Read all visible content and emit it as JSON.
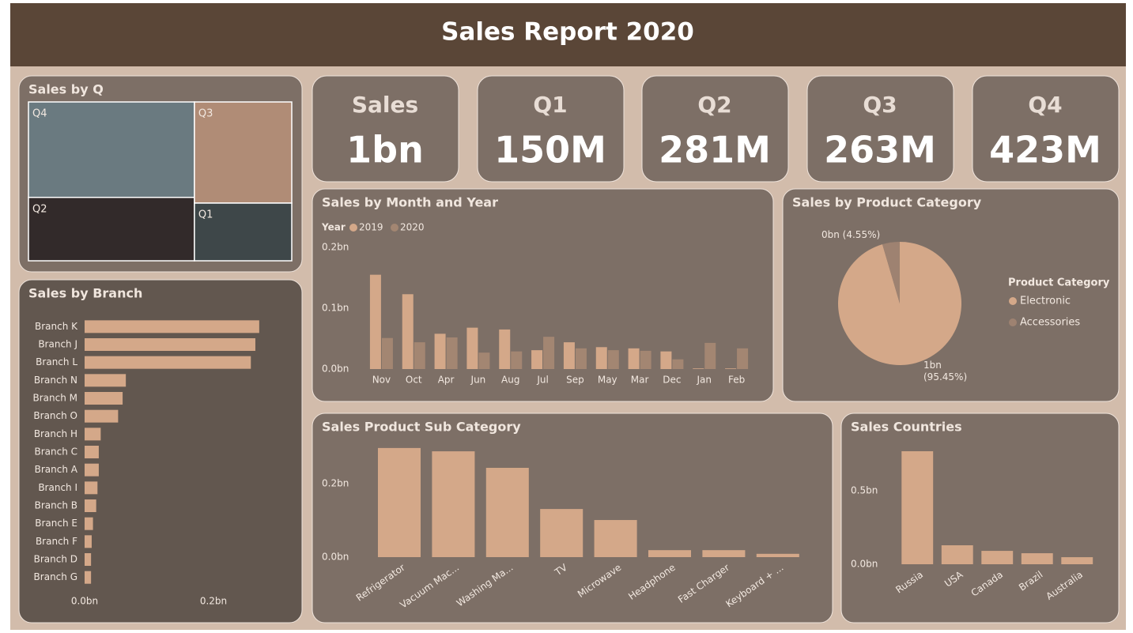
{
  "header": {
    "title": "Sales Report 2020"
  },
  "cards": [
    {
      "label": "Sales",
      "value": "1bn"
    },
    {
      "label": "Q1",
      "value": "150M"
    },
    {
      "label": "Q2",
      "value": "281M"
    },
    {
      "label": "Q3",
      "value": "263M"
    },
    {
      "label": "Q4",
      "value": "423M"
    }
  ],
  "chart_data": [
    {
      "type": "treemap",
      "title": "Sales by Q",
      "categories": [
        "Q1",
        "Q2",
        "Q3",
        "Q4"
      ],
      "values": [
        150,
        281,
        263,
        423
      ],
      "colors": [
        "#3e4749",
        "#322a2a",
        "#b08c76",
        "#6a7a80"
      ]
    },
    {
      "type": "barh",
      "title": "Sales by Branch",
      "categories": [
        "Branch K",
        "Branch J",
        "Branch L",
        "Branch N",
        "Branch M",
        "Branch O",
        "Branch H",
        "Branch C",
        "Branch A",
        "Branch I",
        "Branch B",
        "Branch E",
        "Branch F",
        "Branch D",
        "Branch G"
      ],
      "values": [
        0.271,
        0.265,
        0.258,
        0.064,
        0.059,
        0.052,
        0.025,
        0.022,
        0.022,
        0.02,
        0.018,
        0.013,
        0.011,
        0.01,
        0.01
      ],
      "color": "#d4a889",
      "xlim": [
        0,
        0.3
      ],
      "xticks": [
        {
          "value": 0,
          "label": "0.0bn"
        },
        {
          "value": 0.2,
          "label": "0.2bn"
        }
      ]
    },
    {
      "type": "bar",
      "title": "Sales by Month and Year",
      "legend_title": "Year",
      "categories": [
        "Nov",
        "Oct",
        "Apr",
        "Jun",
        "Aug",
        "Jul",
        "Sep",
        "May",
        "Mar",
        "Dec",
        "Jan",
        "Feb"
      ],
      "series": [
        {
          "name": "2019",
          "color": "#d4a889",
          "values": [
            0.155,
            0.123,
            0.058,
            0.068,
            0.065,
            0.031,
            0.044,
            0.036,
            0.034,
            0.029,
            0.001,
            0.001
          ]
        },
        {
          "name": "2020",
          "color": "#a38672",
          "values": [
            0.051,
            0.044,
            0.052,
            0.027,
            0.029,
            0.053,
            0.034,
            0.031,
            0.03,
            0.016,
            0.043,
            0.034
          ]
        }
      ],
      "ylim": [
        0,
        0.2
      ],
      "yticks": [
        {
          "value": 0,
          "label": "0.0bn"
        },
        {
          "value": 0.1,
          "label": "0.1bn"
        },
        {
          "value": 0.2,
          "label": "0.2bn"
        }
      ]
    },
    {
      "type": "pie",
      "title": "Sales by Product Category",
      "legend_title": "Product Category",
      "categories": [
        "Electronic",
        "Accessories"
      ],
      "values": [
        95.45,
        4.55
      ],
      "value_labels": [
        "1bn (95.45%)",
        "0bn (4.55%)"
      ],
      "colors": [
        "#d4a889",
        "#9e8271"
      ]
    },
    {
      "type": "bar",
      "title": "Sales Product Sub Category",
      "categories": [
        "Refrigerator",
        "Vacuum Mac...",
        "Washing Ma...",
        "TV",
        "Microwave",
        "Headphone",
        "Fast Charger",
        "Keyboard + ..."
      ],
      "values": [
        0.297,
        0.288,
        0.243,
        0.131,
        0.101,
        0.019,
        0.019,
        0.009
      ],
      "color": "#d4a889",
      "ylim": [
        0,
        0.3
      ],
      "yticks": [
        {
          "value": 0,
          "label": "0.0bn"
        },
        {
          "value": 0.2,
          "label": "0.2bn"
        }
      ]
    },
    {
      "type": "bar",
      "title": "Sales Countries",
      "categories": [
        "Russia",
        "USA",
        "Canada",
        "Brazil",
        "Australia"
      ],
      "values": [
        0.769,
        0.129,
        0.091,
        0.075,
        0.048
      ],
      "color": "#d4a889",
      "ylim": [
        0,
        0.8
      ],
      "yticks": [
        {
          "value": 0,
          "label": "0.0bn"
        },
        {
          "value": 0.5,
          "label": "0.5bn"
        }
      ]
    }
  ]
}
